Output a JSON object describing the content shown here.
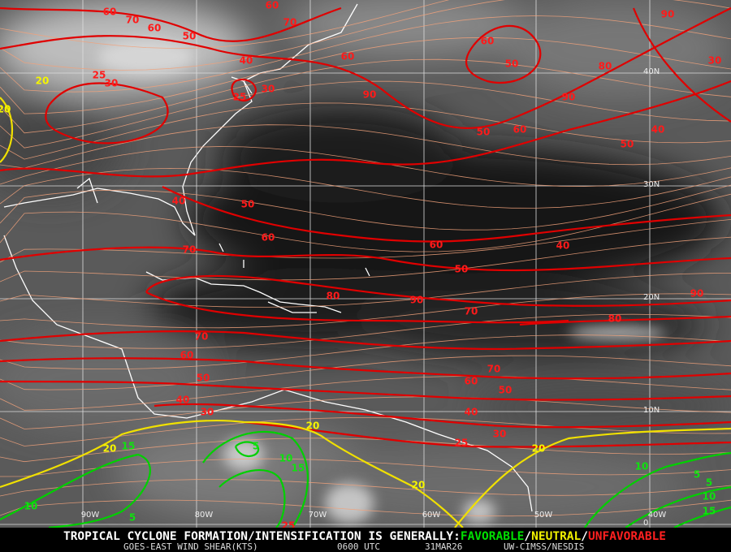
{
  "grid_labels": {
    "longitudes": [
      "90W",
      "80W",
      "70W",
      "60W",
      "50W",
      "40W"
    ],
    "latitudes": [
      "40N",
      "30N",
      "20N",
      "10N",
      "0"
    ]
  },
  "contour_labels": {
    "red": [
      60,
      70,
      60,
      50,
      60,
      70,
      60,
      40,
      25,
      30,
      30,
      25,
      90,
      90,
      60,
      50,
      30,
      80,
      90,
      40,
      50,
      60,
      50,
      40,
      50,
      60,
      70,
      60,
      50,
      40,
      80,
      90,
      70,
      80,
      90,
      70,
      60,
      50,
      40,
      30,
      70,
      60,
      50,
      40,
      30,
      25,
      25
    ],
    "yellow": [
      20,
      20,
      20,
      20,
      20,
      20
    ],
    "green": [
      15,
      5,
      10,
      15,
      10,
      5,
      5,
      10,
      15,
      10,
      5
    ]
  },
  "footer": {
    "prefix": "TROPICAL CYCLONE FORMATION/INTENSIFICATION IS GENERALLY:",
    "favorable": "FAVORABLE",
    "separator_1": "/",
    "neutral": "NEUTRAL",
    "separator_2": "/",
    "unfavorable": "UNFAVORABLE",
    "product": "GOES-EAST WIND SHEAR(KTS)",
    "time": "0600 UTC",
    "date": "31MAR26",
    "source": "UW-CIMSS/NESDIS"
  }
}
